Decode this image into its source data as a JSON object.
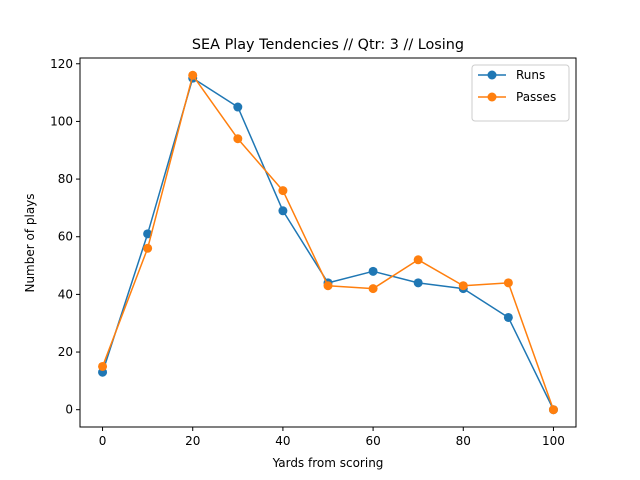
{
  "chart_data": {
    "type": "line",
    "title": "SEA Play Tendencies // Qtr: 3 // Losing",
    "xlabel": "Yards from scoring",
    "ylabel": "Number of plays",
    "xlim": [
      -5,
      105
    ],
    "ylim": [
      -6,
      122
    ],
    "xticks": [
      0,
      20,
      40,
      60,
      80,
      100
    ],
    "yticks": [
      0,
      20,
      40,
      60,
      80,
      100,
      120
    ],
    "grid": false,
    "legend_position": "top-right",
    "x": [
      0,
      10,
      20,
      30,
      40,
      50,
      60,
      70,
      80,
      90,
      100
    ],
    "series": [
      {
        "name": "Runs",
        "color": "#1f77b4",
        "values": [
          13,
          61,
          115,
          105,
          69,
          44,
          48,
          44,
          42,
          32,
          0
        ]
      },
      {
        "name": "Passes",
        "color": "#ff7f0e",
        "values": [
          15,
          56,
          116,
          94,
          76,
          43,
          42,
          52,
          43,
          44,
          0
        ]
      }
    ]
  }
}
